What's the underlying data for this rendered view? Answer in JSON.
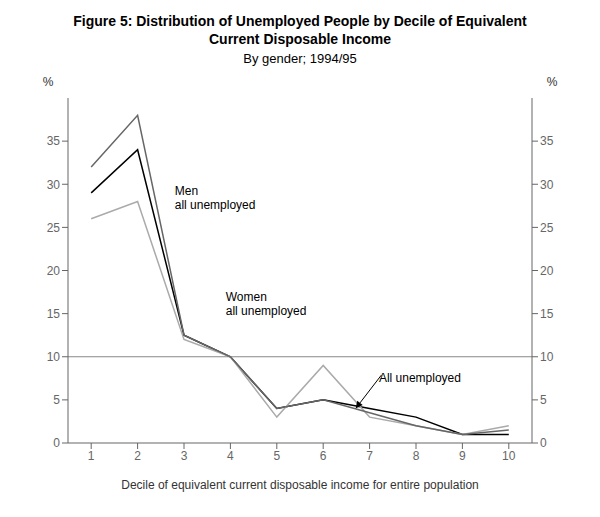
{
  "chart_data": {
    "type": "line",
    "title": "Figure 5: Distribution of Unemployed People by Decile of Equivalent\nCurrent Disposable Income",
    "subtitle": "By gender; 1994/95",
    "xlabel": "Decile of equivalent current disposable income for entire population",
    "ylabel": "%",
    "y2label": "%",
    "x": [
      1,
      2,
      3,
      4,
      5,
      6,
      7,
      8,
      9,
      10
    ],
    "series": [
      {
        "color": "#000000",
        "values": [
          29.0,
          34.0,
          12.5,
          10.0,
          4.0,
          5.0,
          4.0,
          3.0,
          1.0,
          1.0
        ]
      },
      {
        "color": "#aaaaaa",
        "values": [
          26.0,
          28.0,
          12.0,
          10.0,
          3.0,
          9.0,
          3.0,
          2.0,
          1.0,
          2.0
        ]
      },
      {
        "color": "#666666",
        "values": [
          32.0,
          38.0,
          12.5,
          10.0,
          4.0,
          5.0,
          3.5,
          2.0,
          1.0,
          1.5
        ]
      }
    ],
    "xlim": [
      0.5,
      10.5
    ],
    "xticks": [
      1,
      2,
      3,
      4,
      5,
      6,
      7,
      8,
      9,
      10
    ],
    "ylim": [
      0,
      40
    ],
    "yticks": [
      0,
      5,
      10,
      15,
      20,
      25,
      30,
      35
    ],
    "y2lim": [
      0,
      40
    ],
    "y2ticks": [
      0,
      5,
      10,
      15,
      20,
      25,
      30,
      35
    ],
    "grid": false,
    "reference_line_y": 10,
    "annotations": [
      {
        "text": "Men\nall unemployed",
        "x": 2.8,
        "y": 30.0
      },
      {
        "text": "Women\nall unemployed",
        "x": 3.9,
        "y": 14.5
      },
      {
        "text": "All unemployed",
        "x": 7.2,
        "y": 7.5,
        "arrow_x": 6.7,
        "arrow_y": 4.0
      }
    ]
  }
}
